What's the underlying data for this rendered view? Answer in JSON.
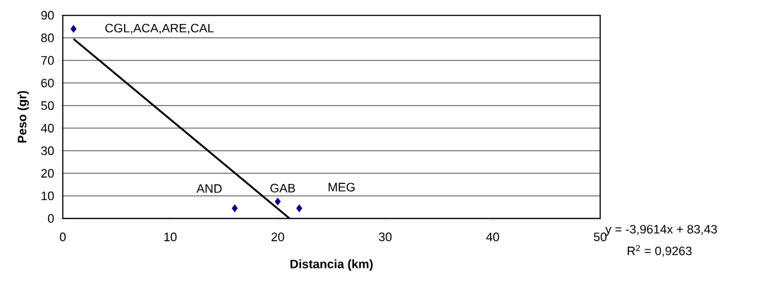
{
  "chart_data": {
    "type": "scatter",
    "xlabel": "Distancia (km)",
    "ylabel": "Peso (gr)",
    "xlim": [
      0,
      50
    ],
    "xticks": [
      0,
      10,
      20,
      30,
      40,
      50
    ],
    "ylim": [
      0,
      90
    ],
    "yticks": [
      0,
      10,
      20,
      30,
      40,
      50,
      60,
      70,
      80,
      90
    ],
    "grid": "y",
    "marker": "diamond",
    "series": [
      {
        "color": "#000080",
        "x": [
          1,
          16,
          20,
          22
        ],
        "values": [
          84,
          4.5,
          7.5,
          4.5
        ]
      },
      {
        "type": "line",
        "color": "#000000",
        "marker": "none",
        "line_style": "solid",
        "x": [
          1,
          21.1
        ],
        "values": [
          79.5,
          0
        ]
      }
    ],
    "annotations": [
      {
        "text": "CGL,ACA,ARE,CAL",
        "x": 1,
        "y": 84
      },
      {
        "text": "AND",
        "x": 16,
        "y": 4.5
      },
      {
        "text": "GAB",
        "x": 20,
        "y": 7.5
      },
      {
        "text": "MEG",
        "x": 22,
        "y": 4.5
      },
      "y = -3,9614x + 83,43",
      "R$^{2}$ = 0,9263"
    ]
  }
}
